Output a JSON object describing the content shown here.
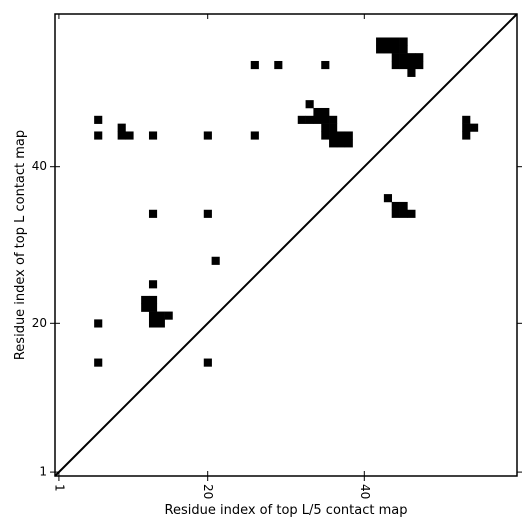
{
  "chart_data": {
    "type": "heatmap",
    "title": "",
    "xlabel": "Residue index of top L/5 contact map",
    "ylabel": "Residue index of top L contact map",
    "xlim": [
      0.5,
      59.5
    ],
    "ylim": [
      0.5,
      59.5
    ],
    "x_ticks": [
      1,
      20,
      40
    ],
    "y_ticks": [
      1,
      20,
      40
    ],
    "x_tick_labels": [
      "1",
      "20",
      "40"
    ],
    "y_tick_labels": [
      "1",
      "20",
      "40"
    ],
    "x_tick_rotation": "vertical",
    "diagonal": {
      "from": [
        0.5,
        0.5
      ],
      "to": [
        59.5,
        59.5
      ]
    },
    "cell_color": "#000000",
    "background_color": "#ffffff",
    "contacts": [
      [
        6,
        15
      ],
      [
        20,
        15
      ],
      [
        6,
        20
      ],
      [
        13,
        20
      ],
      [
        14,
        20
      ],
      [
        13,
        21
      ],
      [
        14,
        21
      ],
      [
        15,
        21
      ],
      [
        12,
        22
      ],
      [
        13,
        22
      ],
      [
        12,
        23
      ],
      [
        13,
        23
      ],
      [
        13,
        25
      ],
      [
        21,
        28
      ],
      [
        13,
        34
      ],
      [
        20,
        34
      ],
      [
        44,
        34
      ],
      [
        45,
        34
      ],
      [
        46,
        34
      ],
      [
        44,
        35
      ],
      [
        45,
        35
      ],
      [
        43,
        36
      ],
      [
        6,
        44
      ],
      [
        9,
        44
      ],
      [
        10,
        44
      ],
      [
        13,
        44
      ],
      [
        20,
        44
      ],
      [
        26,
        44
      ],
      [
        53,
        44
      ],
      [
        9,
        45
      ],
      [
        53,
        45
      ],
      [
        54,
        45
      ],
      [
        6,
        46
      ],
      [
        53,
        46
      ],
      [
        37,
        43
      ],
      [
        38,
        43
      ],
      [
        36,
        43
      ],
      [
        36,
        44
      ],
      [
        37,
        44
      ],
      [
        38,
        44
      ],
      [
        35,
        44
      ],
      [
        35,
        45
      ],
      [
        36,
        45
      ],
      [
        35,
        46
      ],
      [
        36,
        46
      ],
      [
        32,
        46
      ],
      [
        33,
        46
      ],
      [
        34,
        46
      ],
      [
        34,
        47
      ],
      [
        35,
        47
      ],
      [
        33,
        48
      ],
      [
        26,
        53
      ],
      [
        29,
        53
      ],
      [
        35,
        53
      ],
      [
        46,
        52
      ],
      [
        44,
        53
      ],
      [
        45,
        53
      ],
      [
        46,
        53
      ],
      [
        47,
        53
      ],
      [
        44,
        54
      ],
      [
        45,
        54
      ],
      [
        46,
        54
      ],
      [
        47,
        54
      ],
      [
        42,
        55
      ],
      [
        43,
        55
      ],
      [
        44,
        55
      ],
      [
        45,
        55
      ],
      [
        42,
        56
      ],
      [
        43,
        56
      ],
      [
        44,
        56
      ],
      [
        45,
        56
      ]
    ]
  }
}
